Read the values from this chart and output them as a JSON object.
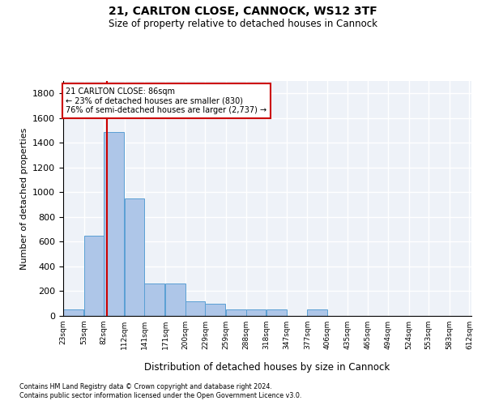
{
  "title_line1": "21, CARLTON CLOSE, CANNOCK, WS12 3TF",
  "title_line2": "Size of property relative to detached houses in Cannock",
  "xlabel": "Distribution of detached houses by size in Cannock",
  "ylabel": "Number of detached properties",
  "bar_color": "#aec6e8",
  "bar_edge_color": "#5a9fd4",
  "bar_left_edges": [
    23,
    53,
    82,
    112,
    141,
    171,
    200,
    229,
    259,
    288,
    318,
    347,
    377,
    406,
    435,
    465,
    494,
    524,
    553,
    583
  ],
  "bar_widths": [
    29,
    29,
    29,
    29,
    29,
    29,
    29,
    29,
    29,
    29,
    29,
    29,
    29,
    29,
    29,
    29,
    29,
    29,
    29,
    29
  ],
  "bar_heights": [
    50,
    650,
    1490,
    950,
    265,
    265,
    120,
    100,
    55,
    55,
    50,
    0,
    50,
    0,
    0,
    0,
    0,
    0,
    0,
    0
  ],
  "property_size": 86,
  "property_label": "21 CARLTON CLOSE: 86sqm",
  "annotation_line1": "← 23% of detached houses are smaller (830)",
  "annotation_line2": "76% of semi-detached houses are larger (2,737) →",
  "vline_color": "#cc0000",
  "annotation_box_color": "#ffffff",
  "annotation_box_edge_color": "#cc0000",
  "ylim": [
    0,
    1900
  ],
  "yticks": [
    0,
    200,
    400,
    600,
    800,
    1000,
    1200,
    1400,
    1600,
    1800
  ],
  "background_color": "#eef2f8",
  "grid_color": "#ffffff",
  "tick_labels": [
    "23sqm",
    "53sqm",
    "82sqm",
    "112sqm",
    "141sqm",
    "171sqm",
    "200sqm",
    "229sqm",
    "259sqm",
    "288sqm",
    "318sqm",
    "347sqm",
    "377sqm",
    "406sqm",
    "435sqm",
    "465sqm",
    "494sqm",
    "524sqm",
    "553sqm",
    "583sqm",
    "612sqm"
  ],
  "footnote1": "Contains HM Land Registry data © Crown copyright and database right 2024.",
  "footnote2": "Contains public sector information licensed under the Open Government Licence v3.0."
}
